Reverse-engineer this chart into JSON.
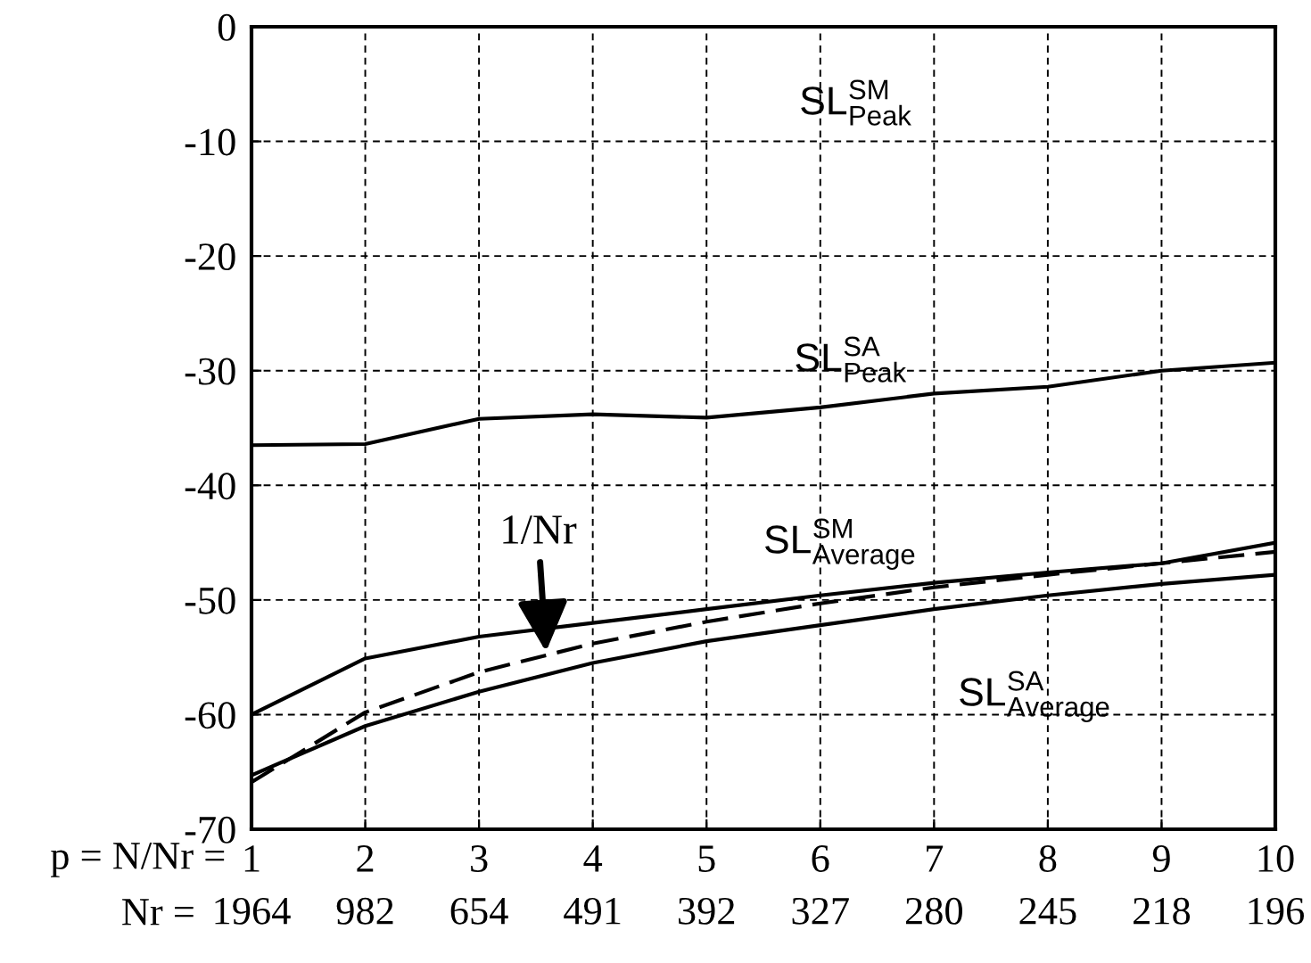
{
  "chart_data": {
    "type": "line",
    "categories": [
      "1\n1964",
      "2\n982",
      "3\n654",
      "4\n491",
      "5\n392",
      "6\n327",
      "7\n280",
      "8\n245",
      "9\n218",
      "10\n196"
    ],
    "series": [
      {
        "color": "#000000",
        "line_style": "solid",
        "values": [
          -36.5,
          -36.4,
          -34.2,
          -33.8,
          -34.1,
          -33.2,
          -32,
          -31.4,
          -30,
          -29.3
        ]
      },
      {
        "color": "#000000",
        "line_style": "solid",
        "values": [
          -60,
          -55.1,
          -53.2,
          -52,
          -50.8,
          -49.6,
          -48.5,
          -47.6,
          -46.8,
          -45
        ]
      },
      {
        "color": "#000000",
        "line_style": "dashed",
        "values": [
          -65.9,
          -59.8,
          -56.3,
          -53.8,
          -51.9,
          -50.3,
          -48.9,
          -47.8,
          -46.8,
          -45.8
        ]
      },
      {
        "color": "#000000",
        "line_style": "solid",
        "values": [
          -65.3,
          -61,
          -58,
          -55.5,
          -53.6,
          -52.2,
          -50.8,
          -49.6,
          -48.6,
          -47.8
        ]
      }
    ],
    "ylim": [
      -70,
      0
    ],
    "yticks": [
      -70,
      -60,
      -50,
      -40,
      -30,
      -20,
      -10,
      0
    ],
    "xlabel": "p = N/Nr =",
    "grid": true,
    "legend": false,
    "marker": "none",
    "annotations": [
      "SL$^{SM}$$_{Peak}$",
      "SL$^{SA}$$_{Peak}$",
      "SL$^{SM}$$_{Average}$",
      "SL$^{SA}$$_{Average}$",
      "Nr =",
      "1/Nr"
    ]
  }
}
